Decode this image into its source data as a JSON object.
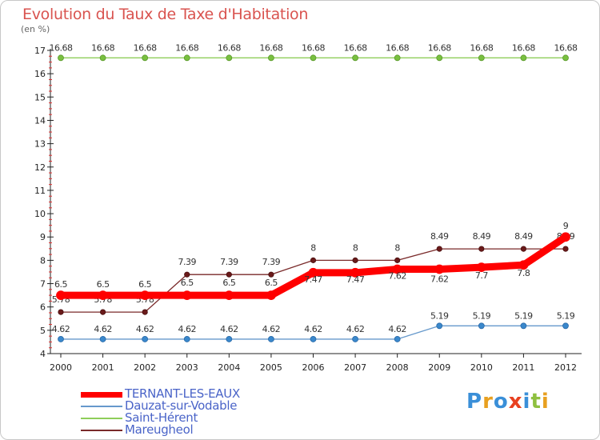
{
  "header": {
    "title": "Evolution du Taux de Taxe d'Habitation",
    "unit": "(en %)"
  },
  "logo": {
    "text": "Proxiti"
  },
  "chart_data": {
    "type": "line",
    "title": "Evolution du Taux de Taxe d'Habitation",
    "ylabel": "(en %)",
    "xlabel": "",
    "x": [
      "2000",
      "2001",
      "2002",
      "2003",
      "2004",
      "2005",
      "2006",
      "2007",
      "2008",
      "2009",
      "2010",
      "2011",
      "2012"
    ],
    "ylim": [
      4,
      17
    ],
    "yticks": [
      4,
      5,
      6,
      7,
      8,
      9,
      10,
      11,
      12,
      13,
      14,
      15,
      16,
      17
    ],
    "grid": false,
    "legend_position": "bottom-left",
    "series": [
      {
        "name": "TERNANT-LES-EAUX",
        "color": "#ff0000",
        "values": [
          6.5,
          6.5,
          6.5,
          6.5,
          6.5,
          6.5,
          7.47,
          7.47,
          7.62,
          7.62,
          7.7,
          7.8,
          9
        ]
      },
      {
        "name": "Dauzat-sur-Vodable",
        "color": "#6699cc",
        "values": [
          4.62,
          4.62,
          4.62,
          4.62,
          4.62,
          4.62,
          4.62,
          4.62,
          4.62,
          5.19,
          5.19,
          5.19,
          5.19
        ]
      },
      {
        "name": "Saint-Hérent",
        "color": "#8fce5a",
        "values": [
          16.68,
          16.68,
          16.68,
          16.68,
          16.68,
          16.68,
          16.68,
          16.68,
          16.68,
          16.68,
          16.68,
          16.68,
          16.68
        ]
      },
      {
        "name": "Mareugheol",
        "color": "#7a2a2a",
        "values": [
          5.78,
          5.78,
          5.78,
          7.39,
          7.39,
          7.39,
          8,
          8,
          8,
          8.49,
          8.49,
          8.49,
          8.49
        ]
      }
    ],
    "data_labels": {
      "TERNANT-LES-EAUX": [
        "6.5",
        "6.5",
        "6.5",
        "6.5",
        "6.5",
        "6.5",
        "7.47",
        "7.47",
        "7.62",
        "7.62",
        "7.7",
        "7.8",
        "9"
      ],
      "Dauzat-sur-Vodable": [
        "4.62",
        "4.62",
        "4.62",
        "4.62",
        "4.62",
        "4.62",
        "4.62",
        "4.62",
        "4.62",
        "5.19",
        "5.19",
        "5.19",
        "5.19"
      ],
      "Saint-Hérent": [
        "16.68",
        "16.68",
        "16.68",
        "16.68",
        "16.68",
        "16.68",
        "16.68",
        "16.68",
        "16.68",
        "16.68",
        "16.68",
        "16.68",
        "16.68"
      ],
      "Mareugheol": [
        "5.78",
        "5.78",
        "5.78",
        "7.39",
        "7.39",
        "7.39",
        "8",
        "8",
        "8",
        "8.49",
        "8.49",
        "8.49",
        "8.49"
      ]
    }
  }
}
